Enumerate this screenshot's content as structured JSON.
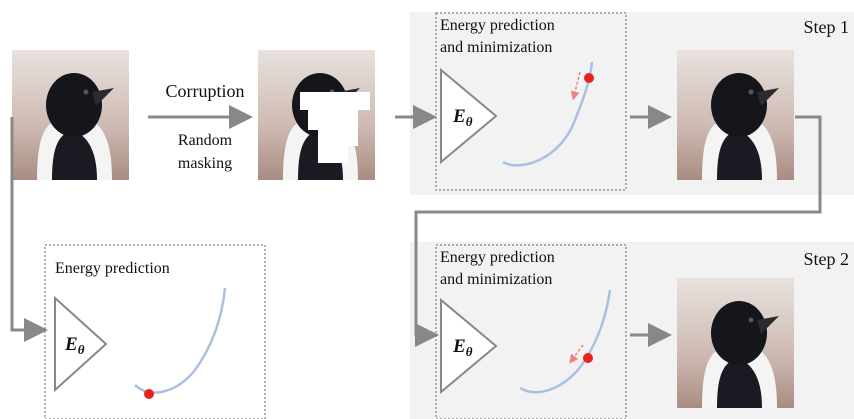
{
  "corruption": {
    "label": "Corruption",
    "method": [
      "Random",
      "masking"
    ]
  },
  "energy_box": {
    "title": "Energy prediction",
    "model": {
      "symbol": "E",
      "subscript": "θ"
    }
  },
  "steps": [
    {
      "label": "Step 1",
      "box_title": [
        "Energy prediction",
        "and minimization"
      ],
      "model": {
        "symbol": "E",
        "subscript": "θ"
      }
    },
    {
      "label": "Step 2",
      "box_title": [
        "Energy prediction",
        "and minimization"
      ],
      "model": {
        "symbol": "E",
        "subscript": "θ"
      }
    }
  ]
}
